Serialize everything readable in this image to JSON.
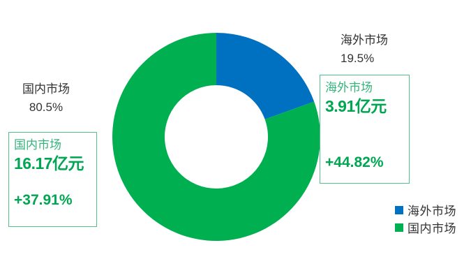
{
  "chart_data": {
    "type": "pie",
    "subtype": "donut",
    "title": "",
    "categories": [
      "海外市场",
      "国内市场"
    ],
    "values": [
      19.5,
      80.5
    ],
    "colors": [
      "#0070C0",
      "#00B050"
    ],
    "start_angle_deg": 0,
    "clockwise": true,
    "legend_position": "bottom-right",
    "annotations": [
      {
        "category": "海外市场",
        "percent_label": "19.5%",
        "value": "3.91亿元",
        "growth": "+44.82%"
      },
      {
        "category": "国内市场",
        "percent_label": "80.5%",
        "value": "16.17亿元",
        "growth": "+37.91%"
      }
    ]
  },
  "labels": {
    "domestic": {
      "name": "国内市场",
      "percent": "80.5%"
    },
    "overseas": {
      "name": "海外市场",
      "percent": "19.5%"
    }
  },
  "callouts": {
    "domestic": {
      "title": "国内市场",
      "value": "16.17亿元",
      "growth": "+37.91%"
    },
    "overseas": {
      "title": "海外市场",
      "value": "3.91亿元",
      "growth": "+44.82%"
    }
  },
  "legend": {
    "items": [
      {
        "label": "海外市场",
        "color": "#0070C0"
      },
      {
        "label": "国内市场",
        "color": "#00B050"
      }
    ]
  },
  "colors": {
    "overseas_blue": "#0070C0",
    "domestic_green": "#00B050",
    "callout_border": "#52C189",
    "callout_label_green": "#35B57C",
    "callout_number_green": "#00A651",
    "label_text": "#333333"
  }
}
